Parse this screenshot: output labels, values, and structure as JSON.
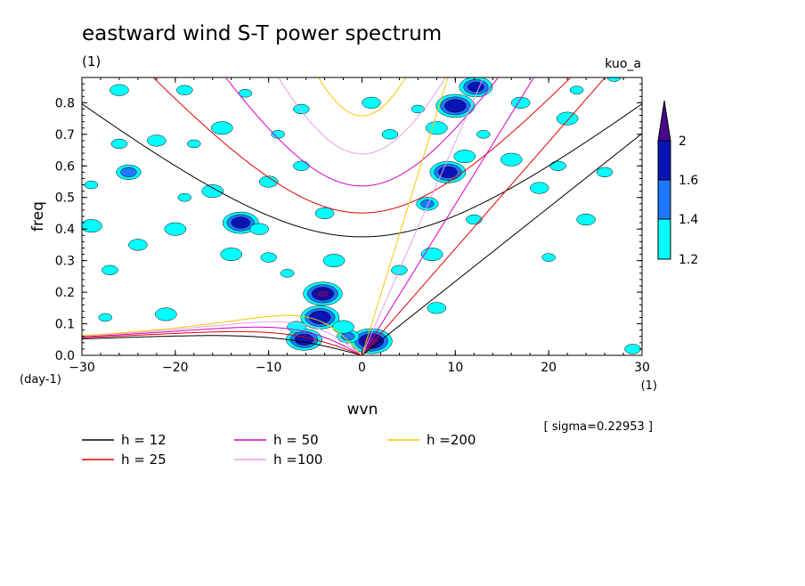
{
  "chart_data": {
    "type": "heatmap",
    "title": "eastward wind S-T power spectrum",
    "subtitle": "(1)",
    "dataset_label": "kuo_a",
    "xlabel": "wvn",
    "x_unit": "(1)",
    "ylabel": "freq",
    "y_unit": "(day-1)",
    "xlim": [
      -30,
      30
    ],
    "ylim": [
      0,
      0.88
    ],
    "x_ticks": [
      -30,
      -20,
      -10,
      0,
      10,
      20,
      30
    ],
    "x_tick_labels": [
      "−30",
      "−20",
      "−10",
      "0",
      "10",
      "20",
      "30"
    ],
    "y_ticks": [
      0.0,
      0.1,
      0.2,
      0.3,
      0.4,
      0.5,
      0.6,
      0.7,
      0.8
    ],
    "y_tick_labels": [
      "0.0",
      "0.1",
      "0.2",
      "0.3",
      "0.4",
      "0.5",
      "0.6",
      "0.7",
      "0.8"
    ],
    "colorbar": {
      "levels": [
        1.2,
        1.4,
        1.6,
        2
      ],
      "level_labels": [
        "1.2",
        "1.4",
        "1.6",
        "2"
      ],
      "colors": [
        "#00ffff",
        "#1e78ff",
        "#0a14b4",
        "#460a8c"
      ]
    },
    "sigma_text": "[ sigma=0.22953 ]",
    "series": [
      {
        "name": "h = 12",
        "h": 12,
        "color": "#000000"
      },
      {
        "name": "h = 25",
        "h": 25,
        "color": "#e10000"
      },
      {
        "name": "h = 50",
        "h": 50,
        "color": "#d200c8"
      },
      {
        "name": "h =100",
        "h": 100,
        "color": "#e6a0e6"
      },
      {
        "name": "h =200",
        "h": 200,
        "color": "#f0c800"
      }
    ],
    "features": [
      {
        "wvn": -4.2,
        "freq": 0.195,
        "level": 4
      },
      {
        "wvn": -4.5,
        "freq": 0.12,
        "level": 3
      },
      {
        "wvn": -6.2,
        "freq": 0.05,
        "level": 3
      },
      {
        "wvn": 1.0,
        "freq": 0.045,
        "level": 4
      },
      {
        "wvn": -1.5,
        "freq": 0.06,
        "level": 2
      },
      {
        "wvn": 10.0,
        "freq": 0.79,
        "level": 3
      },
      {
        "wvn": 9.2,
        "freq": 0.58,
        "level": 3
      },
      {
        "wvn": 12.2,
        "freq": 0.85,
        "level": 3
      },
      {
        "wvn": 7.0,
        "freq": 0.48,
        "level": 2
      },
      {
        "wvn": 7.5,
        "freq": 0.32,
        "level": 1
      },
      {
        "wvn": -13.0,
        "freq": 0.42,
        "level": 3
      },
      {
        "wvn": -25.0,
        "freq": 0.58,
        "level": 2
      },
      {
        "wvn": -19.0,
        "freq": 0.5,
        "level": 1
      },
      {
        "wvn": -16.0,
        "freq": 0.52,
        "level": 1
      },
      {
        "wvn": -11.0,
        "freq": 0.4,
        "level": 1
      },
      {
        "wvn": -10.0,
        "freq": 0.31,
        "level": 1
      },
      {
        "wvn": -8.0,
        "freq": 0.26,
        "level": 1
      },
      {
        "wvn": -14.0,
        "freq": 0.32,
        "level": 1
      },
      {
        "wvn": -22.0,
        "freq": 0.68,
        "level": 1
      },
      {
        "wvn": -26.0,
        "freq": 0.67,
        "level": 1
      },
      {
        "wvn": -18.0,
        "freq": 0.67,
        "level": 1
      },
      {
        "wvn": -15.0,
        "freq": 0.72,
        "level": 1
      },
      {
        "wvn": -10.0,
        "freq": 0.55,
        "level": 1
      },
      {
        "wvn": -6.5,
        "freq": 0.6,
        "level": 1
      },
      {
        "wvn": -29.0,
        "freq": 0.54,
        "level": 1
      },
      {
        "wvn": -29.0,
        "freq": 0.41,
        "level": 1
      },
      {
        "wvn": -26.0,
        "freq": 0.84,
        "level": 1
      },
      {
        "wvn": -19.0,
        "freq": 0.84,
        "level": 1
      },
      {
        "wvn": -12.5,
        "freq": 0.83,
        "level": 1
      },
      {
        "wvn": -20.0,
        "freq": 0.4,
        "level": 1
      },
      {
        "wvn": -24.0,
        "freq": 0.35,
        "level": 1
      },
      {
        "wvn": -27.0,
        "freq": 0.27,
        "level": 1
      },
      {
        "wvn": -27.5,
        "freq": 0.12,
        "level": 1
      },
      {
        "wvn": -3.0,
        "freq": 0.3,
        "level": 1
      },
      {
        "wvn": -4.0,
        "freq": 0.45,
        "level": 1
      },
      {
        "wvn": -6.5,
        "freq": 0.78,
        "level": 1
      },
      {
        "wvn": -9.0,
        "freq": 0.7,
        "level": 1
      },
      {
        "wvn": -21.0,
        "freq": 0.13,
        "level": 1
      },
      {
        "wvn": 1.0,
        "freq": 0.8,
        "level": 1
      },
      {
        "wvn": 3.0,
        "freq": 0.7,
        "level": 1
      },
      {
        "wvn": 13.0,
        "freq": 0.7,
        "level": 1
      },
      {
        "wvn": 16.0,
        "freq": 0.62,
        "level": 1
      },
      {
        "wvn": 19.0,
        "freq": 0.53,
        "level": 1
      },
      {
        "wvn": 21.0,
        "freq": 0.6,
        "level": 1
      },
      {
        "wvn": 23.0,
        "freq": 0.84,
        "level": 1
      },
      {
        "wvn": 22.0,
        "freq": 0.75,
        "level": 1
      },
      {
        "wvn": 24.0,
        "freq": 0.43,
        "level": 1
      },
      {
        "wvn": 26.0,
        "freq": 0.58,
        "level": 1
      },
      {
        "wvn": 27.0,
        "freq": 0.88,
        "level": 1
      },
      {
        "wvn": 11.0,
        "freq": 0.63,
        "level": 1
      },
      {
        "wvn": 8.0,
        "freq": 0.15,
        "level": 1
      },
      {
        "wvn": 4.0,
        "freq": 0.27,
        "level": 1
      },
      {
        "wvn": 6.0,
        "freq": 0.78,
        "level": 1
      },
      {
        "wvn": 8.0,
        "freq": 0.72,
        "level": 1
      },
      {
        "wvn": 17.0,
        "freq": 0.8,
        "level": 1
      },
      {
        "wvn": 29.0,
        "freq": 0.02,
        "level": 1
      },
      {
        "wvn": 20.0,
        "freq": 0.31,
        "level": 1
      },
      {
        "wvn": -2.0,
        "freq": 0.09,
        "level": 1
      },
      {
        "wvn": -7.0,
        "freq": 0.09,
        "level": 1
      },
      {
        "wvn": 12.0,
        "freq": 0.43,
        "level": 1
      }
    ]
  }
}
